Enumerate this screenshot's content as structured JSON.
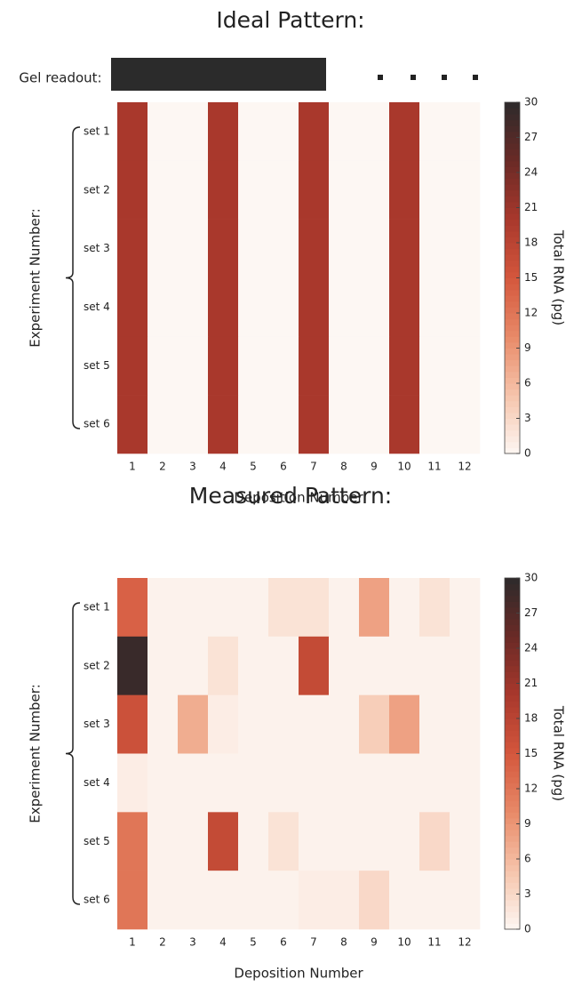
{
  "chart_data": [
    {
      "type": "heatmap",
      "title": "Ideal Pattern:",
      "annotation": "Gel readout:",
      "x": [
        1,
        2,
        3,
        4,
        5,
        6,
        7,
        8,
        9,
        10,
        11,
        12
      ],
      "y": [
        "set 1",
        "set 2",
        "set 3",
        "set 4",
        "set 5",
        "set 6"
      ],
      "values": [
        [
          20,
          0,
          0,
          20,
          0,
          0,
          20,
          0,
          0,
          20,
          0,
          0
        ],
        [
          20,
          0,
          0,
          20,
          0,
          0,
          20,
          0,
          0,
          20,
          0,
          0
        ],
        [
          20,
          0,
          0,
          20,
          0,
          0,
          20,
          0,
          0,
          20,
          0,
          0
        ],
        [
          20,
          0,
          0,
          20,
          0,
          0,
          20,
          0,
          0,
          20,
          0,
          0
        ],
        [
          20,
          0,
          0,
          20,
          0,
          0,
          20,
          0,
          0,
          20,
          0,
          0
        ],
        [
          20,
          0,
          0,
          20,
          0,
          0,
          20,
          0,
          0,
          20,
          0,
          0
        ]
      ],
      "xlabel": "Deposition Number",
      "ylabel": "Experiment Number:",
      "zlim": [
        0,
        30
      ],
      "zticks": [
        0,
        3,
        6,
        9,
        12,
        15,
        18,
        21,
        24,
        27,
        30
      ],
      "colorbar_label": "Total RNA (pg)",
      "colormap": [
        "#fdf7f3",
        "#f6c4ab",
        "#e88a68",
        "#d4573d",
        "#a9382c",
        "#6a2a26",
        "#2d2a2b"
      ]
    },
    {
      "type": "heatmap",
      "title": "Measured Pattern:",
      "x": [
        1,
        2,
        3,
        4,
        5,
        6,
        7,
        8,
        9,
        10,
        11,
        12
      ],
      "y": [
        "set 1",
        "set 2",
        "set 3",
        "set 4",
        "set 5",
        "set 6"
      ],
      "values": [
        [
          14,
          0.5,
          0.5,
          0.5,
          0.5,
          2,
          2,
          0.5,
          8,
          0.5,
          2,
          0.5
        ],
        [
          29,
          0.5,
          0.5,
          2,
          0.5,
          0.5,
          17,
          0.5,
          0.5,
          0.5,
          0.5,
          0.5
        ],
        [
          16,
          0.5,
          7,
          1,
          0.5,
          0.5,
          0.5,
          0.5,
          4,
          8,
          0.5,
          0.5
        ],
        [
          1,
          0.5,
          0.5,
          0.5,
          0.5,
          0.5,
          0.5,
          0.5,
          0.5,
          0.5,
          0.5,
          0.5
        ],
        [
          12,
          0.5,
          0.5,
          17,
          0.5,
          2,
          0.5,
          0.5,
          0.5,
          0.5,
          3,
          0.5
        ],
        [
          12,
          0.5,
          0.5,
          0.5,
          0.5,
          0.5,
          1,
          1,
          3,
          0.5,
          0.5,
          0.5
        ]
      ],
      "xlabel": "Deposition Number",
      "ylabel": "Experiment Number:",
      "zlim": [
        0,
        30
      ],
      "zticks": [
        0,
        3,
        6,
        9,
        12,
        15,
        18,
        21,
        24,
        27,
        30
      ],
      "colorbar_label": "Total RNA (pg)",
      "colormap": [
        "#fdf7f3",
        "#f6c4ab",
        "#e88a68",
        "#d4573d",
        "#a9382c",
        "#6a2a26",
        "#2d2a2b"
      ]
    }
  ]
}
